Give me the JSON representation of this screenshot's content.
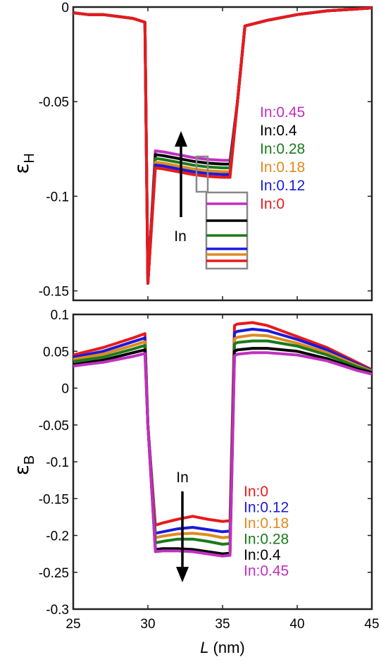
{
  "chart_data": [
    {
      "type": "line",
      "panel": "top",
      "ylabel_symbol": "ε",
      "ylabel_subscript": "H",
      "xlim": [
        25,
        45
      ],
      "ylim": [
        -0.155,
        0.0
      ],
      "yticks": [
        0,
        -0.05,
        -0.1,
        -0.15
      ],
      "ytick_labels": [
        "0",
        "-0.05",
        "-0.1",
        "-0.15"
      ],
      "grid": false,
      "legend_placement": "right",
      "legend": [
        "In:0.45",
        "In:0.4",
        "In:0.28",
        "In:0.18",
        "In:0.12",
        "In:0"
      ],
      "arrow_label": "In",
      "arrow_direction": "up",
      "has_zoom_inset": true,
      "x": [
        25,
        26,
        27,
        28,
        29,
        29.8,
        30,
        30.5,
        31,
        32,
        33,
        34,
        35,
        35.5,
        36,
        36.5,
        38,
        40,
        42,
        44,
        45
      ],
      "series": [
        {
          "name": "In:0.45",
          "color": "#c030c0",
          "values": [
            -0.003,
            -0.004,
            -0.004,
            -0.005,
            -0.006,
            -0.008,
            -0.146,
            -0.076,
            -0.0765,
            -0.078,
            -0.0795,
            -0.0805,
            -0.081,
            -0.081,
            -0.05,
            -0.01,
            -0.007,
            -0.004,
            -0.002,
            -0.001,
            -0.0005
          ]
        },
        {
          "name": "In:0.4",
          "color": "#000000",
          "values": [
            -0.003,
            -0.004,
            -0.004,
            -0.005,
            -0.006,
            -0.008,
            -0.146,
            -0.078,
            -0.0785,
            -0.08,
            -0.0815,
            -0.0825,
            -0.083,
            -0.083,
            -0.05,
            -0.01,
            -0.007,
            -0.004,
            -0.002,
            -0.001,
            -0.0005
          ]
        },
        {
          "name": "In:0.28",
          "color": "#1a7a1a",
          "values": [
            -0.003,
            -0.004,
            -0.004,
            -0.005,
            -0.006,
            -0.008,
            -0.146,
            -0.08,
            -0.0805,
            -0.082,
            -0.0835,
            -0.0845,
            -0.085,
            -0.085,
            -0.05,
            -0.01,
            -0.007,
            -0.004,
            -0.002,
            -0.001,
            -0.0005
          ]
        },
        {
          "name": "In:0.18",
          "color": "#e08a1e",
          "values": [
            -0.003,
            -0.004,
            -0.004,
            -0.005,
            -0.006,
            -0.008,
            -0.146,
            -0.082,
            -0.0825,
            -0.084,
            -0.0855,
            -0.0865,
            -0.087,
            -0.087,
            -0.05,
            -0.01,
            -0.007,
            -0.004,
            -0.002,
            -0.001,
            -0.0005
          ]
        },
        {
          "name": "In:0.12",
          "color": "#1a1adc",
          "values": [
            -0.003,
            -0.004,
            -0.004,
            -0.005,
            -0.006,
            -0.008,
            -0.146,
            -0.0835,
            -0.084,
            -0.0855,
            -0.087,
            -0.088,
            -0.0885,
            -0.0885,
            -0.05,
            -0.01,
            -0.007,
            -0.004,
            -0.002,
            -0.001,
            -0.0005
          ]
        },
        {
          "name": "In:0",
          "color": "#e81a1a",
          "values": [
            -0.003,
            -0.004,
            -0.004,
            -0.005,
            -0.006,
            -0.008,
            -0.146,
            -0.085,
            -0.0855,
            -0.087,
            -0.0885,
            -0.0895,
            -0.09,
            -0.09,
            -0.05,
            -0.01,
            -0.007,
            -0.004,
            -0.002,
            -0.001,
            -0.0005
          ]
        }
      ]
    },
    {
      "type": "line",
      "panel": "bottom",
      "xlabel_symbol": "L",
      "xlabel_unit": "(nm)",
      "ylabel_symbol": "ε",
      "ylabel_subscript": "B",
      "xlim": [
        25,
        45
      ],
      "ylim": [
        -0.3,
        0.1
      ],
      "xticks": [
        25,
        30,
        35,
        40,
        45
      ],
      "yticks": [
        0.1,
        0.05,
        0,
        -0.05,
        -0.1,
        -0.15,
        -0.2,
        -0.25,
        -0.3
      ],
      "ytick_labels": [
        "0.1",
        "0.05",
        "0",
        "-0.05",
        "-0.1",
        "-0.15",
        "-0.2",
        "-0.25",
        "-0.3"
      ],
      "grid": false,
      "legend_placement": "bottom-right",
      "legend": [
        "In:0",
        "In:0.12",
        "In:0.18",
        "In:0.28",
        "In:0.4",
        "In:0.45"
      ],
      "arrow_label": "In",
      "arrow_direction": "down",
      "x": [
        25,
        27,
        29,
        29.8,
        30,
        30.5,
        31,
        32,
        33,
        34,
        35,
        35.5,
        35.8,
        36,
        37,
        38,
        40,
        42,
        44,
        45
      ],
      "series": [
        {
          "name": "In:0",
          "color": "#e81a1a",
          "values": [
            0.045,
            0.055,
            0.068,
            0.074,
            -0.05,
            -0.186,
            -0.183,
            -0.178,
            -0.174,
            -0.178,
            -0.181,
            -0.18,
            0.085,
            0.087,
            0.089,
            0.085,
            0.07,
            0.055,
            0.035,
            0.025
          ]
        },
        {
          "name": "In:0.12",
          "color": "#1a1adc",
          "values": [
            0.042,
            0.05,
            0.063,
            0.068,
            -0.05,
            -0.197,
            -0.195,
            -0.191,
            -0.189,
            -0.192,
            -0.195,
            -0.194,
            0.075,
            0.077,
            0.08,
            0.078,
            0.066,
            0.052,
            0.033,
            0.024
          ]
        },
        {
          "name": "In:0.18",
          "color": "#e08a1e",
          "values": [
            0.039,
            0.046,
            0.058,
            0.063,
            -0.05,
            -0.203,
            -0.201,
            -0.198,
            -0.197,
            -0.199,
            -0.203,
            -0.202,
            0.067,
            0.069,
            0.072,
            0.071,
            0.061,
            0.048,
            0.031,
            0.023
          ]
        },
        {
          "name": "In:0.28",
          "color": "#1a7a1a",
          "values": [
            0.036,
            0.042,
            0.053,
            0.058,
            -0.05,
            -0.21,
            -0.208,
            -0.205,
            -0.205,
            -0.208,
            -0.212,
            -0.211,
            0.06,
            0.062,
            0.064,
            0.064,
            0.057,
            0.045,
            0.029,
            0.022
          ]
        },
        {
          "name": "In:0.4",
          "color": "#000000",
          "values": [
            0.032,
            0.038,
            0.048,
            0.052,
            -0.05,
            -0.219,
            -0.218,
            -0.218,
            -0.219,
            -0.222,
            -0.225,
            -0.224,
            0.05,
            0.052,
            0.054,
            0.054,
            0.05,
            0.04,
            0.026,
            0.021
          ]
        },
        {
          "name": "In:0.45",
          "color": "#c030c0",
          "values": [
            0.03,
            0.035,
            0.043,
            0.047,
            -0.05,
            -0.222,
            -0.221,
            -0.221,
            -0.222,
            -0.225,
            -0.228,
            -0.227,
            0.044,
            0.046,
            0.048,
            0.048,
            0.045,
            0.037,
            0.024,
            0.019
          ]
        }
      ]
    }
  ]
}
